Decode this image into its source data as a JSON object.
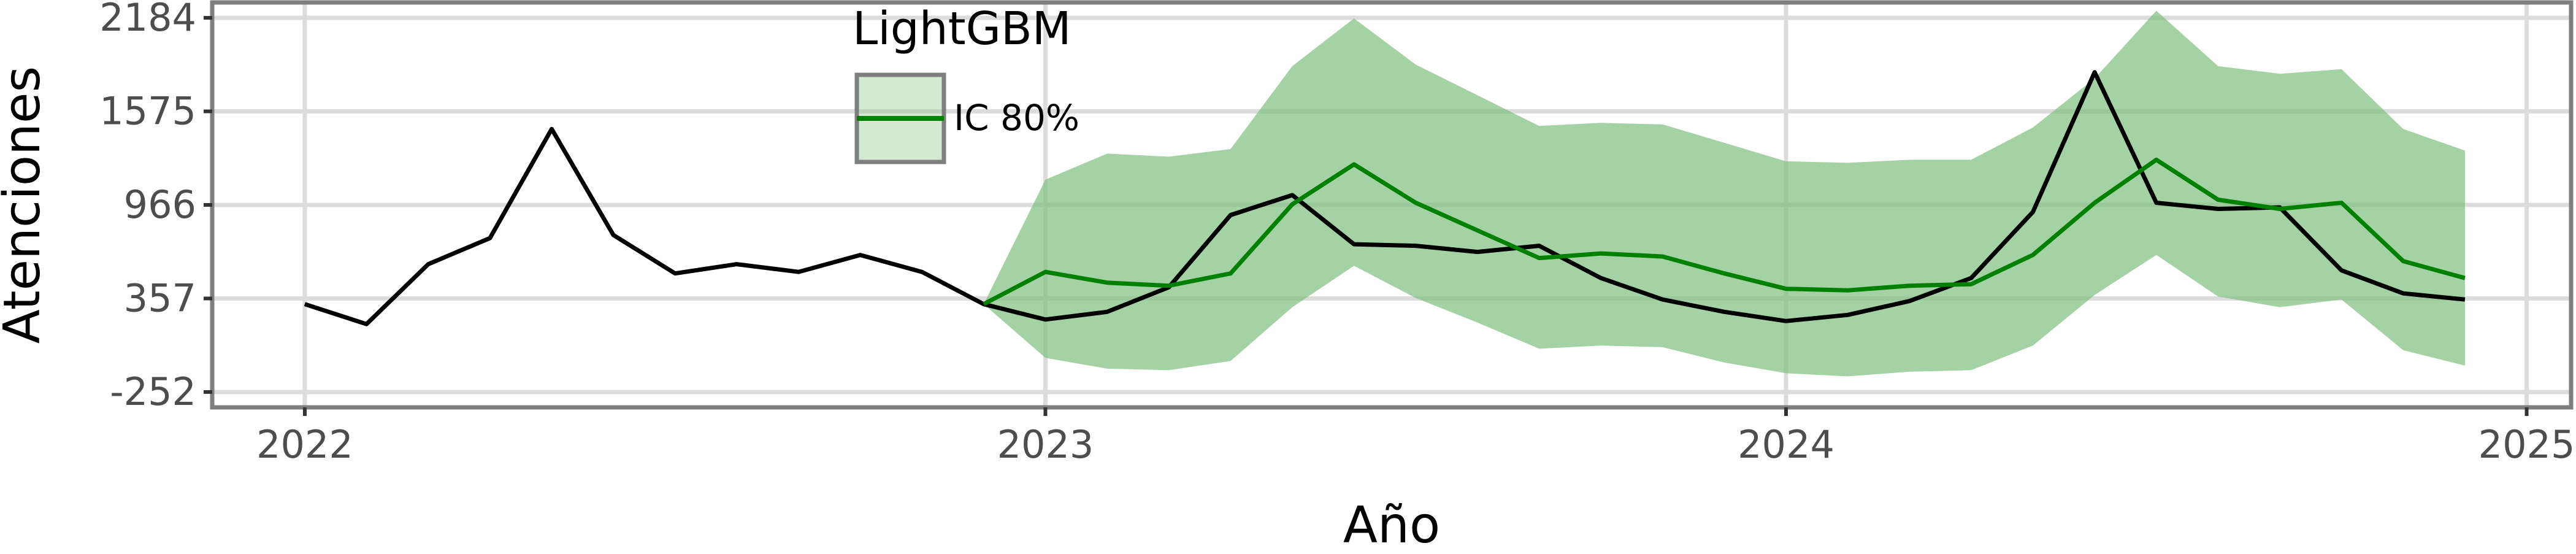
{
  "chart_data": {
    "type": "line",
    "xlabel": "Año",
    "ylabel": "Atenciones",
    "xlim": [
      2021.875,
      2025.06
    ],
    "ylim": [
      -352,
      2284
    ],
    "x_ticks": [
      2022,
      2023,
      2024,
      2025
    ],
    "x_tick_labels": [
      "2022",
      "2023",
      "2024",
      "2025"
    ],
    "y_ticks": [
      -252,
      357,
      966,
      1575,
      2184
    ],
    "y_tick_labels": [
      "-252",
      "357",
      "966",
      "1575",
      "2184"
    ],
    "grid": true,
    "legend": {
      "title": "LightGBM",
      "placement": "top-center",
      "entries": [
        "IC 80%"
      ]
    },
    "colors": {
      "observed": "#000000",
      "forecast": "#008000",
      "interval_fill": "#7fbf7f",
      "panel_border": "#7f7f7f",
      "grid": "#dcdcdc"
    },
    "series": [
      {
        "role": "observed",
        "x": [
          "2022-01",
          "2022-02",
          "2022-03",
          "2022-04",
          "2022-05",
          "2022-06",
          "2022-07",
          "2022-08",
          "2022-09",
          "2022-10",
          "2022-11",
          "2022-12",
          "2023-01",
          "2023-02",
          "2023-03",
          "2023-04",
          "2023-05",
          "2023-06",
          "2023-07",
          "2023-08",
          "2023-09",
          "2023-10",
          "2023-11",
          "2023-12",
          "2024-01",
          "2024-02",
          "2024-03",
          "2024-04",
          "2024-05",
          "2024-06",
          "2024-07",
          "2024-08",
          "2024-09",
          "2024-10",
          "2024-11",
          "2024-12"
        ],
        "values": [
          320,
          190,
          580,
          750,
          1460,
          770,
          520,
          580,
          530,
          640,
          530,
          320,
          220,
          270,
          430,
          900,
          1030,
          710,
          700,
          660,
          700,
          490,
          350,
          270,
          210,
          250,
          340,
          490,
          920,
          1830,
          980,
          940,
          950,
          540,
          390,
          350
        ]
      },
      {
        "role": "forecast",
        "name": "IC 80%",
        "x": [
          "2022-12",
          "2023-01",
          "2023-02",
          "2023-03",
          "2023-04",
          "2023-05",
          "2023-06",
          "2023-07",
          "2023-08",
          "2023-09",
          "2023-10",
          "2023-11",
          "2023-12",
          "2024-01",
          "2024-02",
          "2024-03",
          "2024-04",
          "2024-05",
          "2024-06",
          "2024-07",
          "2024-08",
          "2024-09",
          "2024-10",
          "2024-11",
          "2024-12"
        ],
        "values": [
          320,
          530,
          460,
          440,
          520,
          970,
          1230,
          980,
          800,
          620,
          650,
          630,
          520,
          420,
          410,
          440,
          450,
          640,
          980,
          1260,
          1000,
          940,
          980,
          600,
          490
        ],
        "lower": [
          320,
          -30,
          -100,
          -110,
          -50,
          300,
          570,
          360,
          200,
          30,
          50,
          40,
          -60,
          -130,
          -150,
          -120,
          -110,
          50,
          380,
          640,
          370,
          300,
          350,
          20,
          -80
        ],
        "upper": [
          320,
          1130,
          1300,
          1280,
          1330,
          1870,
          2180,
          1880,
          1680,
          1480,
          1500,
          1490,
          1370,
          1250,
          1240,
          1260,
          1260,
          1470,
          1790,
          2230,
          1870,
          1820,
          1850,
          1460,
          1320
        ]
      }
    ]
  }
}
